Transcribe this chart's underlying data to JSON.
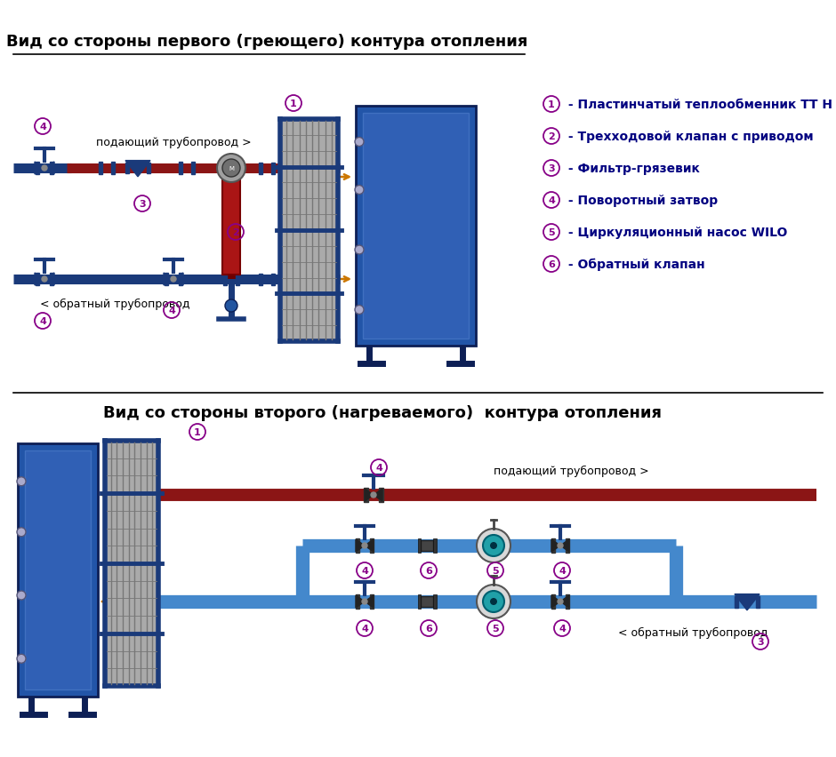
{
  "title1": "Вид со стороны первого (греющего) контура отопления",
  "title2": "Вид со стороны второго (нагреваемого)  контура отопления",
  "legend": [
    [
      "1",
      " - Пластинчатый теплообменник ТТ Н"
    ],
    [
      "2",
      " - Трехходовой клапан с приводом"
    ],
    [
      "3",
      " - Фильтр-грязевик"
    ],
    [
      "4",
      " - Поворотный затвор"
    ],
    [
      "5",
      " - Циркуляционный насос WILO"
    ],
    [
      "6",
      " - Обратный клапан"
    ]
  ],
  "bg_color": "#ffffff",
  "title_color": "#000000",
  "pipe_red": "#8B1515",
  "pipe_darkred": "#6B0000",
  "pipe_blue": "#1A3A7A",
  "pipe_med_blue": "#2255A0",
  "pipe_light_blue": "#4488CC",
  "circle_color": "#880088",
  "legend_text_color": "#000080",
  "orange_arrow": "#CC7700"
}
